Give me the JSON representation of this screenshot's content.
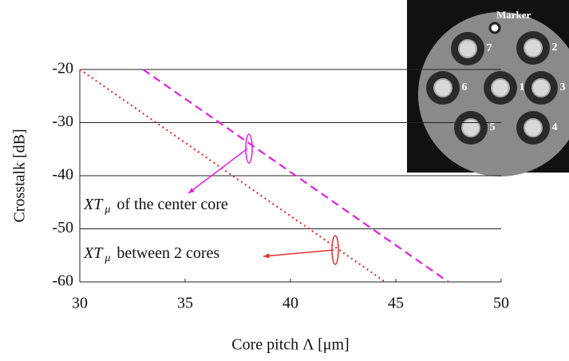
{
  "chart_data": {
    "type": "line",
    "x_label": "Core pitch Λ [μm]",
    "y_label": "Crosstalk [dB]",
    "xlim": [
      30,
      50
    ],
    "ylim": [
      -60,
      -20
    ],
    "xticks": [
      30,
      35,
      40,
      45,
      50
    ],
    "yticks": [
      -60,
      -50,
      -40,
      -30,
      -20
    ],
    "grid": true,
    "series": [
      {
        "color": "#e03030",
        "dash": "dotted",
        "x": [
          30,
          44.5
        ],
        "values": [
          -20,
          -60
        ]
      },
      {
        "color": "#e020e0",
        "dash": "dashed",
        "x": [
          33,
          47.5
        ],
        "values": [
          -20,
          -60
        ]
      }
    ],
    "annotations": [
      {
        "main": "XT",
        "sub": "μ",
        "rest": "of the center core",
        "color": "#e020e0"
      },
      {
        "main": "XT",
        "sub": "μ",
        "rest": "between 2 cores",
        "color": "#e03030"
      }
    ]
  },
  "inset": {
    "marker": "Marker",
    "cores": [
      "1",
      "2",
      "3",
      "4",
      "5",
      "6",
      "7"
    ]
  }
}
